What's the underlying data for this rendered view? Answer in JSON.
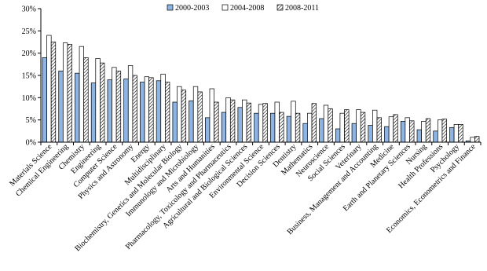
{
  "chart_data": {
    "type": "bar",
    "categories": [
      "Materials Science",
      "Chemical Engineering",
      "Chemistry",
      "Engineering",
      "Computer Science",
      "Physics and Astronomy",
      "Energy",
      "Multidisciplinary",
      "Biochemistry, Genetics and Molecular Biology",
      "Immunology and Microbiology",
      "Arts and Humanities",
      "Pharmacology, Toxicology and Pharmaceutics",
      "Agricultural and Biological Sciences",
      "Environmental Science",
      "Decision Sciences",
      "Dentistry",
      "Mathematics",
      "Neuroscience",
      "Social Sciences",
      "Veterinary",
      "Business, Management and Accounting",
      "Medicine",
      "Earth and Planetary Sciences",
      "Nursing",
      "Health Professions",
      "Psychology",
      "Economics, Econometrics and Finance"
    ],
    "series": [
      {
        "name": "2000-2003",
        "color": "#8db4e2",
        "values": [
          19,
          16,
          15.5,
          13.3,
          14,
          14.2,
          13.5,
          13.8,
          9,
          9.3,
          5.5,
          6.7,
          7.8,
          6.5,
          6.5,
          5.8,
          4.2,
          5.3,
          3,
          4.2,
          3.8,
          3.5,
          4.7,
          2.8,
          2.5,
          3.3,
          0.3
        ]
      },
      {
        "name": "2004-2008",
        "color": "#ffffff",
        "values": [
          24,
          22.3,
          21.5,
          18.8,
          16.8,
          17.2,
          14.7,
          15.3,
          12.5,
          12.5,
          12,
          10,
          9.5,
          8.5,
          9,
          9.2,
          6.5,
          8.3,
          6.5,
          7.3,
          7.2,
          5.7,
          5.5,
          4.7,
          5,
          4,
          1.1
        ]
      },
      {
        "name": "2008-2011",
        "color": "#000000",
        "hatch": true,
        "values": [
          22.5,
          22,
          19,
          17.8,
          16,
          15,
          14.5,
          13.5,
          11.7,
          11.3,
          9,
          9.5,
          8.8,
          8.7,
          6.7,
          6.5,
          8.7,
          7.5,
          7.3,
          6.7,
          5.5,
          6.2,
          4.8,
          5.3,
          5.2,
          4,
          1.3
        ]
      }
    ],
    "ylim": [
      0,
      30
    ],
    "yticks": [
      {
        "value": 0,
        "label": "0%"
      },
      {
        "value": 5,
        "label": "5%"
      },
      {
        "value": 10,
        "label": "10%"
      },
      {
        "value": 15,
        "label": "15%"
      },
      {
        "value": 20,
        "label": "20%"
      },
      {
        "value": 25,
        "label": "25%"
      },
      {
        "value": 30,
        "label": "30%"
      }
    ]
  }
}
